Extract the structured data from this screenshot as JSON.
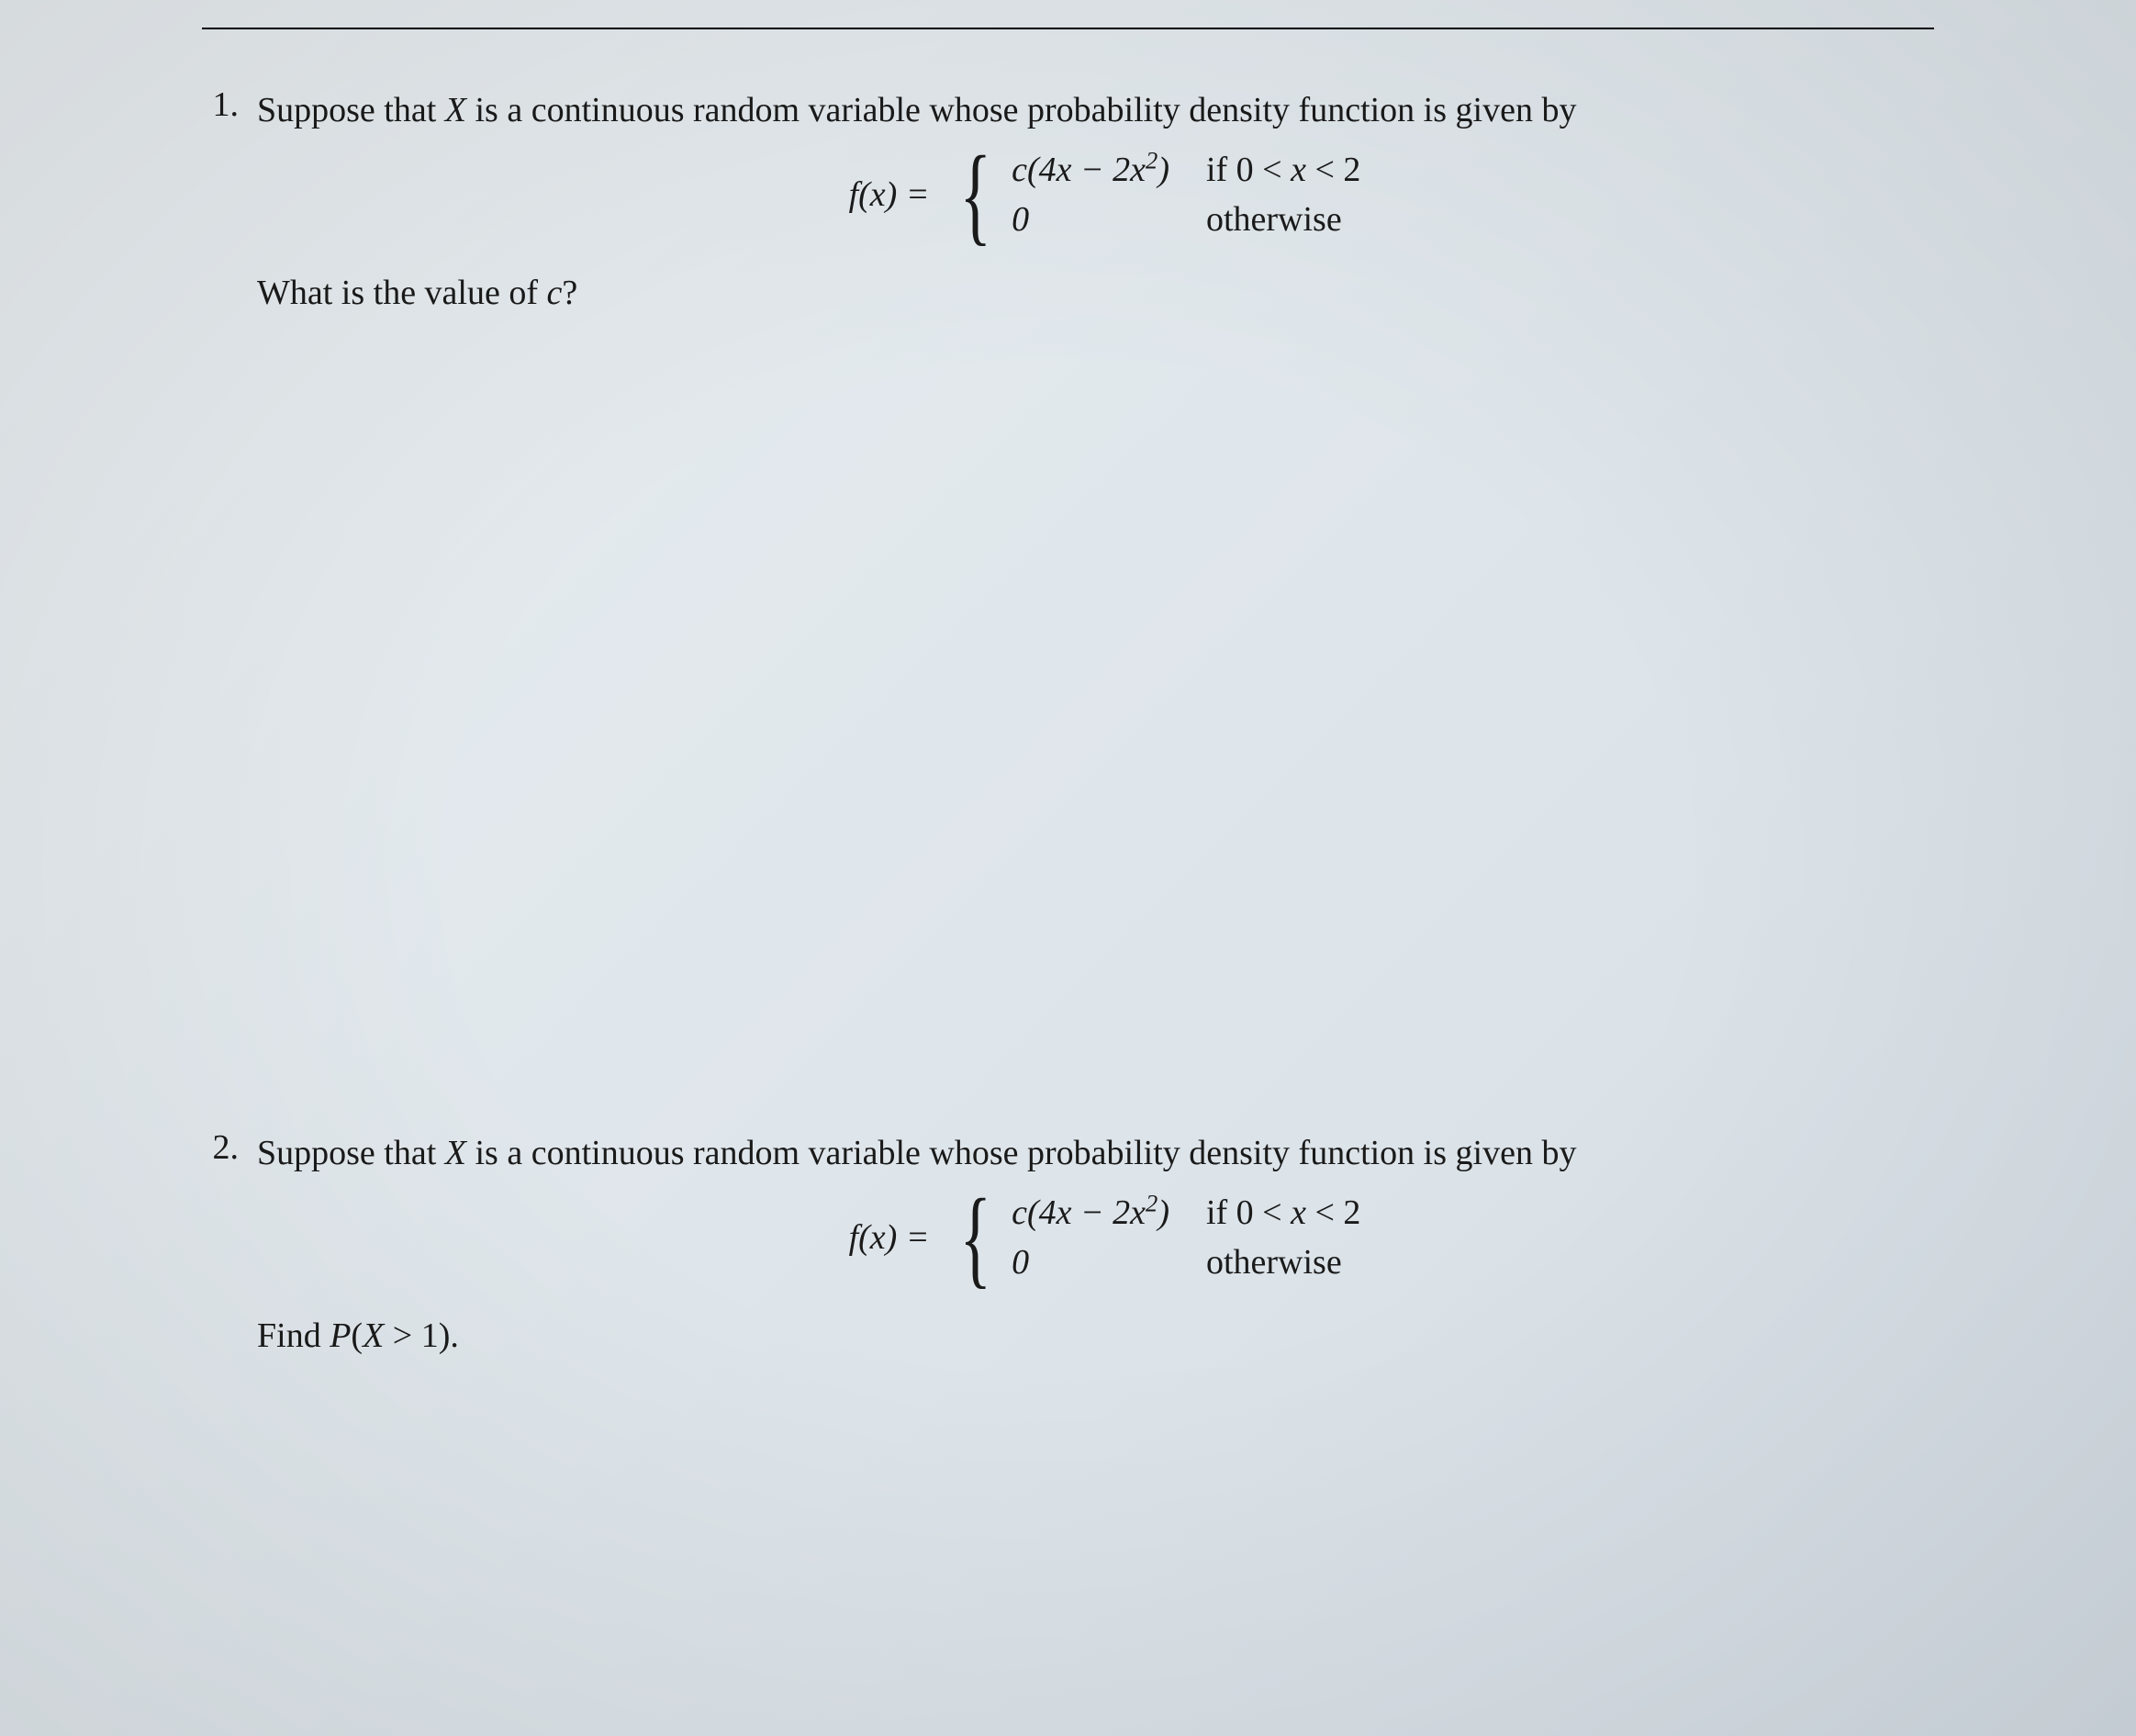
{
  "document": {
    "background_color_start": "#e8edf0",
    "background_color_end": "#d4dde4",
    "text_color": "#1a1a1a",
    "rule_color": "#000000",
    "font_family": "Computer Modern",
    "body_fontsize": 38
  },
  "problems": [
    {
      "number": "1.",
      "statement_prefix": "Suppose that ",
      "variable": "X",
      "statement_suffix": " is a continuous random variable whose probability density function is given by",
      "equation": {
        "lhs_f": "f",
        "lhs_arg": "x",
        "equals": " = ",
        "case1_c": "c",
        "case1_open": "(4",
        "case1_x1": "x",
        "case1_minus": " − 2",
        "case1_x2": "x",
        "case1_exp": "2",
        "case1_close": ")",
        "case1_cond_if": "if 0 < ",
        "case1_cond_x": "x",
        "case1_cond_lt2": " < 2",
        "case2_expr": "0",
        "case2_cond": "otherwise"
      },
      "question_prefix": "What is the value of ",
      "question_var": "c",
      "question_suffix": "?"
    },
    {
      "number": "2.",
      "statement_prefix": "Suppose that ",
      "variable": "X",
      "statement_suffix": " is a continuous random variable whose probability density function is given by",
      "equation": {
        "lhs_f": "f",
        "lhs_arg": "x",
        "equals": " = ",
        "case1_c": "c",
        "case1_open": "(4",
        "case1_x1": "x",
        "case1_minus": " − 2",
        "case1_x2": "x",
        "case1_exp": "2",
        "case1_close": ")",
        "case1_cond_if": "if 0 < ",
        "case1_cond_x": "x",
        "case1_cond_lt2": " < 2",
        "case2_expr": "0",
        "case2_cond": "otherwise"
      },
      "question_prefix": "Find ",
      "question_P": "P",
      "question_open": "(",
      "question_X": "X",
      "question_gt": " > 1)",
      "question_suffix": "."
    }
  ]
}
